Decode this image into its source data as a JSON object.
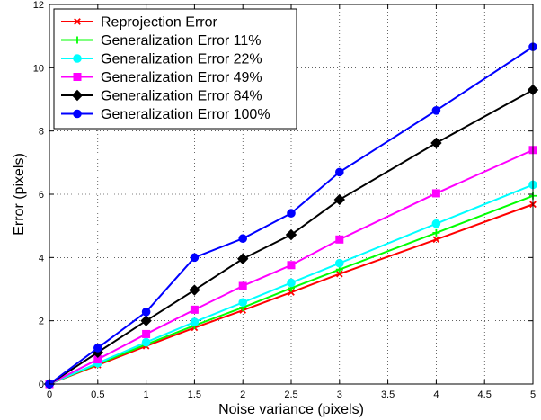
{
  "chart_data": {
    "type": "line",
    "xlabel": "Noise variance (pixels)",
    "ylabel": "Error (pixels)",
    "xlim": [
      0,
      5
    ],
    "ylim": [
      0,
      12
    ],
    "xticks": [
      "0",
      "0.5",
      "1",
      "1.5",
      "2",
      "2.5",
      "3",
      "3.5",
      "4",
      "4.5",
      "5"
    ],
    "yticks": [
      "0",
      "2",
      "4",
      "6",
      "8",
      "10",
      "12"
    ],
    "grid": true,
    "legend_position": "top-left",
    "x": [
      0,
      0.5,
      1,
      1.5,
      2,
      2.5,
      3,
      4,
      5
    ],
    "series": [
      {
        "name": "Reprojection Error",
        "color": "#ff0000",
        "marker": "x",
        "values": [
          0,
          0.6,
          1.2,
          1.78,
          2.33,
          2.9,
          3.48,
          4.57,
          5.68
        ]
      },
      {
        "name": "Generalization Error 11%",
        "color": "#00ff00",
        "marker": "plus",
        "values": [
          0,
          0.63,
          1.25,
          1.85,
          2.42,
          3.03,
          3.62,
          4.78,
          5.95
        ]
      },
      {
        "name": "Generalization Error 22%",
        "color": "#00ffff",
        "marker": "circle",
        "values": [
          0,
          0.66,
          1.32,
          1.96,
          2.58,
          3.2,
          3.82,
          5.07,
          6.3
        ]
      },
      {
        "name": "Generalization Error 49%",
        "color": "#ff00ff",
        "marker": "square",
        "values": [
          0,
          0.78,
          1.58,
          2.35,
          3.1,
          3.76,
          4.57,
          6.03,
          7.4
        ]
      },
      {
        "name": "Generalization Error 84%",
        "color": "#000000",
        "marker": "diamond",
        "values": [
          0,
          1.0,
          2.0,
          2.97,
          3.96,
          4.72,
          5.83,
          7.62,
          9.3
        ]
      },
      {
        "name": "Generalization Error 100%",
        "color": "#0000ff",
        "marker": "circle",
        "values": [
          0,
          1.14,
          2.28,
          4.0,
          4.6,
          5.4,
          6.7,
          8.65,
          10.66
        ]
      }
    ]
  }
}
